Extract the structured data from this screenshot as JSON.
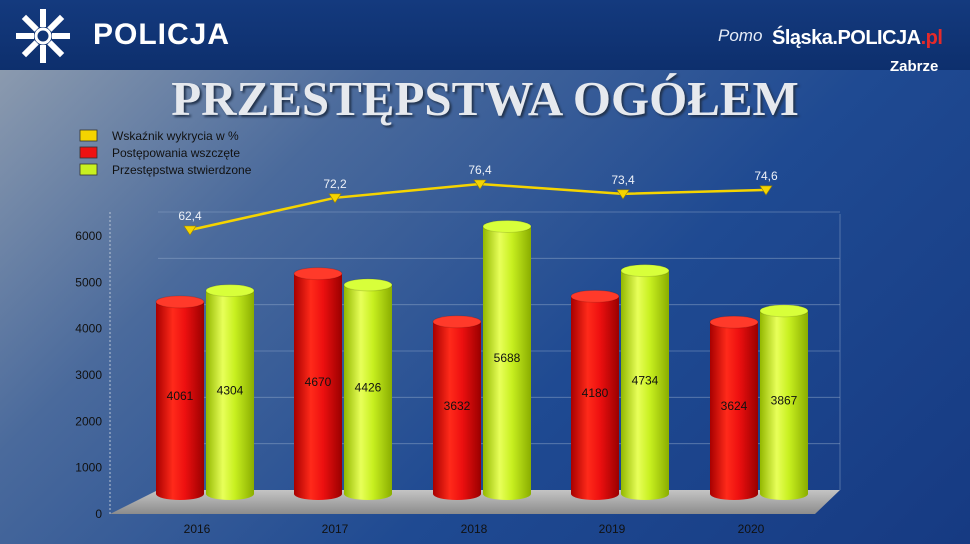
{
  "header": {
    "brand": "POLICJA",
    "partial_text": "Pomo",
    "site_main": "Śląska.POLICJA",
    "site_suffix": ".pl",
    "city": "Zabrze"
  },
  "chart_data": {
    "type": "bar",
    "title": "PRZESTĘPSTWA OGÓŁEM",
    "categories": [
      "2016",
      "2017",
      "2018",
      "2019",
      "2020"
    ],
    "ylim": [
      0,
      6000
    ],
    "yticks": [
      "0",
      "1000",
      "2000",
      "3000",
      "4000",
      "5000",
      "6000"
    ],
    "grid": true,
    "legend_position": "top-left",
    "series": [
      {
        "name": "Wskaźnik wykrycia w %",
        "kind": "line",
        "color": "#f5d400",
        "values": [
          62.4,
          72.2,
          76.4,
          73.4,
          74.6
        ],
        "labels": [
          "62,4",
          "72,2",
          "76,4",
          "73,4",
          "74,6"
        ]
      },
      {
        "name": "Postępowania wszczęte",
        "kind": "bar",
        "color": "#ee1111",
        "values": [
          4061,
          4670,
          3632,
          4180,
          3624
        ]
      },
      {
        "name": "Przestępstwa stwierdzone",
        "kind": "bar",
        "color": "#c8f020",
        "values": [
          4304,
          4426,
          5688,
          4734,
          3867
        ]
      }
    ]
  }
}
